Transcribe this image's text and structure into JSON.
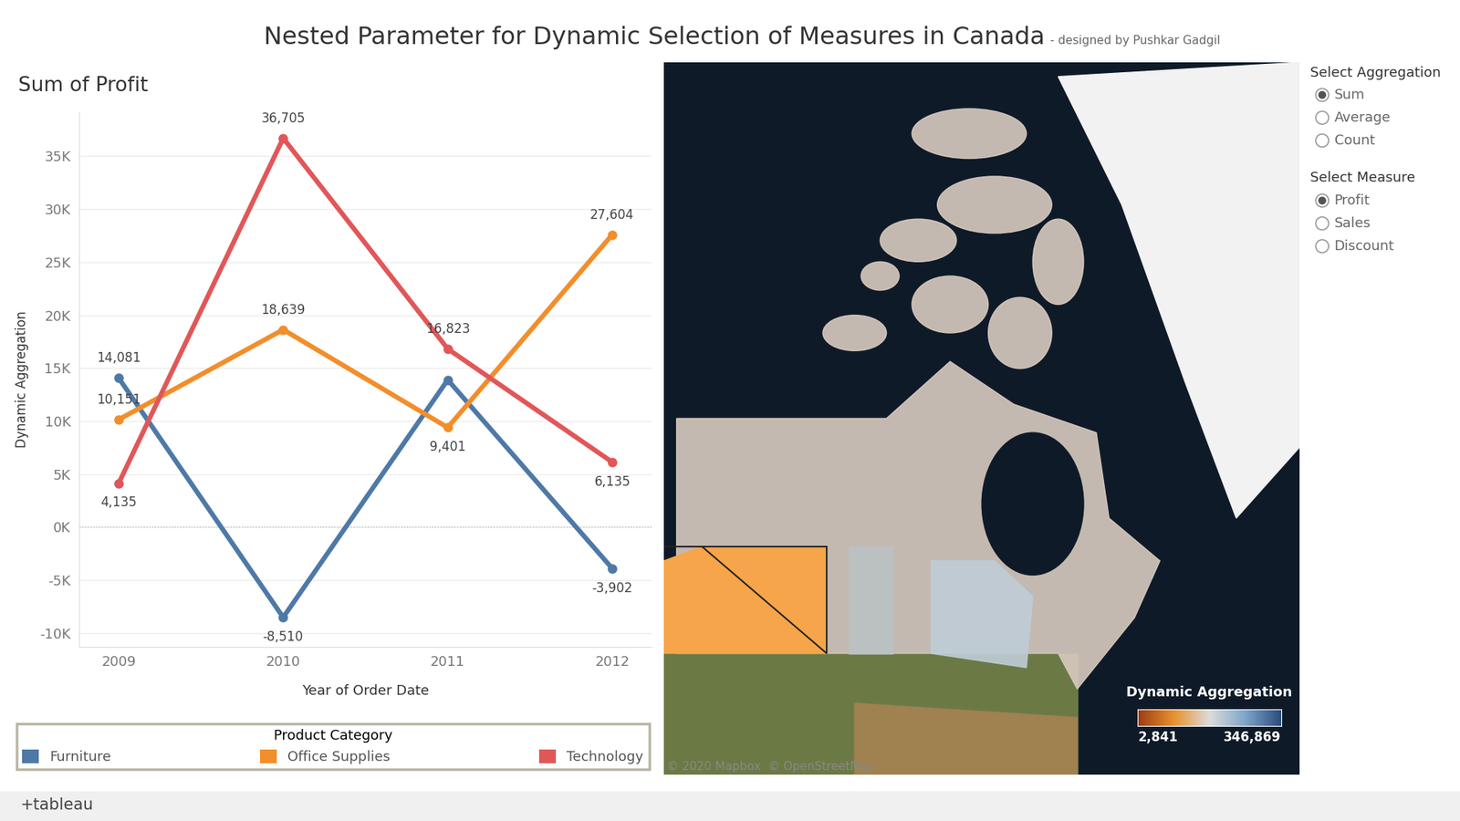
{
  "title": "Nested Parameter for Dynamic Selection of Measures in Canada",
  "subtitle": "- designed by Pushkar Gadgil",
  "chart_data": {
    "type": "line",
    "title": "Sum of Profit",
    "x_label": "Year of Order Date",
    "y_label": "Dynamic Aggregation",
    "categories": [
      "2009",
      "2010",
      "2011",
      "2012"
    ],
    "series": [
      {
        "name": "Furniture",
        "color": "#4e79a7",
        "values": [
          14081,
          -8510,
          13900,
          -3902
        ],
        "value_labels": [
          "14,081",
          "-8,510",
          null,
          "-3,902"
        ]
      },
      {
        "name": "Office Supplies",
        "color": "#f28e2b",
        "values": [
          10151,
          18639,
          9401,
          27604
        ],
        "value_labels": [
          "10,151",
          "18,639",
          "9,401",
          "27,604"
        ]
      },
      {
        "name": "Technology",
        "color": "#e15759",
        "values": [
          4135,
          36705,
          16823,
          6135
        ],
        "value_labels": [
          "4,135",
          "36,705",
          "16,823",
          "6,135"
        ]
      }
    ],
    "ylim": [
      -11300,
      39200
    ],
    "yticks": [
      {
        "value": -10000,
        "label": "-10K"
      },
      {
        "value": -5000,
        "label": "-5K"
      },
      {
        "value": 0,
        "label": "0K"
      },
      {
        "value": 5000,
        "label": "5K"
      },
      {
        "value": 10000,
        "label": "10K"
      },
      {
        "value": 15000,
        "label": "15K"
      },
      {
        "value": 20000,
        "label": "20K"
      },
      {
        "value": 25000,
        "label": "25K"
      },
      {
        "value": 30000,
        "label": "30K"
      },
      {
        "value": 35000,
        "label": "35K"
      }
    ],
    "grid": true,
    "data_labels": true,
    "marker": "circle",
    "legend": "bottom",
    "legend_title": "Product Category"
  },
  "map": {
    "attribution": "© 2020 Mapbox  © OpenStreetMap",
    "colorbar": {
      "title": "Dynamic Aggregation",
      "range": [
        2841,
        346869
      ],
      "ticks": [
        {
          "value": 2841,
          "label": "2,841"
        },
        {
          "value": 346869,
          "label": "346,869"
        }
      ]
    }
  },
  "controls": [
    {
      "title": "Select Aggregation",
      "options": [
        "Sum",
        "Average",
        "Count"
      ],
      "selected": "Sum"
    },
    {
      "title": "Select Measure",
      "options": [
        "Profit",
        "Sales",
        "Discount"
      ],
      "selected": "Profit"
    }
  ],
  "footer": "+tableau"
}
